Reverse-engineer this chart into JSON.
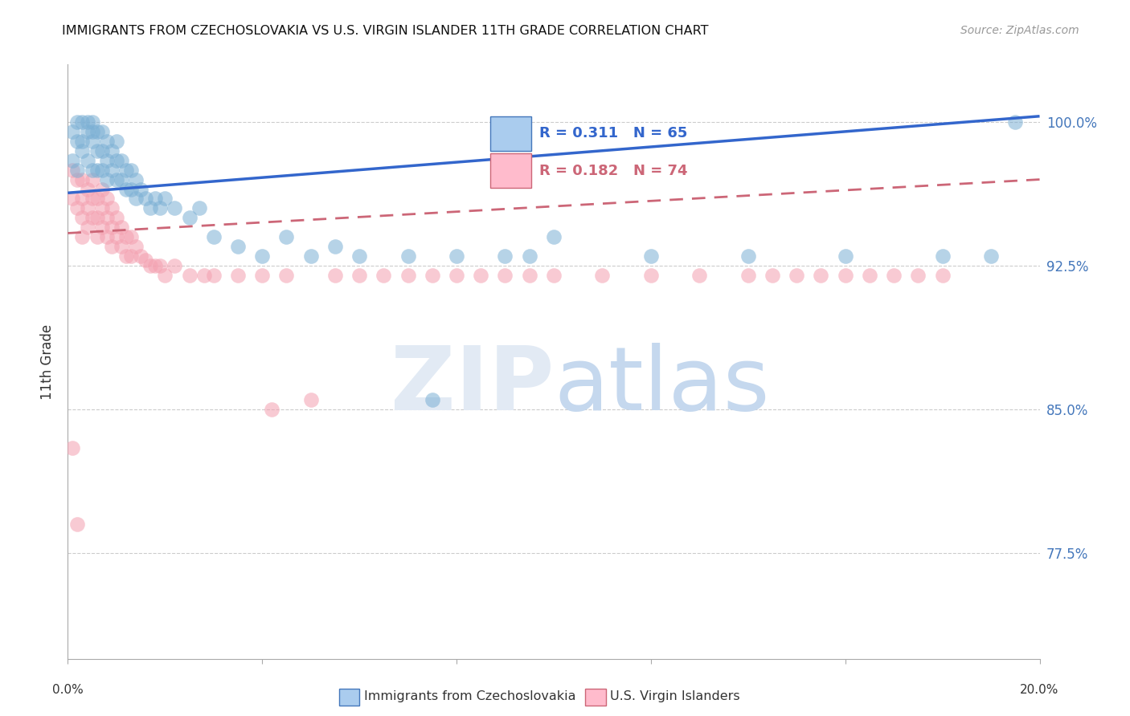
{
  "title": "IMMIGRANTS FROM CZECHOSLOVAKIA VS U.S. VIRGIN ISLANDER 11TH GRADE CORRELATION CHART",
  "source": "Source: ZipAtlas.com",
  "ylabel": "11th Grade",
  "ytick_labels": [
    "77.5%",
    "85.0%",
    "92.5%",
    "100.0%"
  ],
  "ytick_values": [
    0.775,
    0.85,
    0.925,
    1.0
  ],
  "xlim": [
    0.0,
    0.2
  ],
  "ylim": [
    0.72,
    1.03
  ],
  "legend1_label": "Immigrants from Czechoslovakia",
  "legend2_label": "U.S. Virgin Islanders",
  "R_blue": 0.311,
  "N_blue": 65,
  "R_pink": 0.182,
  "N_pink": 74,
  "blue_color": "#7BAFD4",
  "pink_color": "#F4A0B0",
  "line_blue": "#3366CC",
  "line_pink": "#CC6677",
  "blue_line_y0": 0.963,
  "blue_line_y1": 1.003,
  "pink_line_y0": 0.942,
  "pink_line_y1": 0.97,
  "blue_scatter_x": [
    0.001,
    0.001,
    0.002,
    0.002,
    0.002,
    0.003,
    0.003,
    0.003,
    0.004,
    0.004,
    0.004,
    0.005,
    0.005,
    0.005,
    0.005,
    0.006,
    0.006,
    0.006,
    0.007,
    0.007,
    0.007,
    0.008,
    0.008,
    0.008,
    0.009,
    0.009,
    0.01,
    0.01,
    0.01,
    0.011,
    0.011,
    0.012,
    0.012,
    0.013,
    0.013,
    0.014,
    0.014,
    0.015,
    0.016,
    0.017,
    0.018,
    0.019,
    0.02,
    0.022,
    0.025,
    0.027,
    0.03,
    0.035,
    0.04,
    0.045,
    0.05,
    0.055,
    0.06,
    0.07,
    0.075,
    0.08,
    0.09,
    0.095,
    0.1,
    0.12,
    0.14,
    0.16,
    0.18,
    0.19,
    0.195
  ],
  "blue_scatter_y": [
    0.995,
    0.98,
    1.0,
    0.99,
    0.975,
    1.0,
    0.99,
    0.985,
    1.0,
    0.995,
    0.98,
    1.0,
    0.995,
    0.99,
    0.975,
    0.995,
    0.985,
    0.975,
    0.995,
    0.985,
    0.975,
    0.99,
    0.98,
    0.97,
    0.985,
    0.975,
    0.99,
    0.98,
    0.97,
    0.98,
    0.97,
    0.975,
    0.965,
    0.975,
    0.965,
    0.97,
    0.96,
    0.965,
    0.96,
    0.955,
    0.96,
    0.955,
    0.96,
    0.955,
    0.95,
    0.955,
    0.94,
    0.935,
    0.93,
    0.94,
    0.93,
    0.935,
    0.93,
    0.93,
    0.855,
    0.93,
    0.93,
    0.93,
    0.94,
    0.93,
    0.93,
    0.93,
    0.93,
    0.93,
    1.0
  ],
  "pink_scatter_x": [
    0.001,
    0.001,
    0.001,
    0.002,
    0.002,
    0.002,
    0.003,
    0.003,
    0.003,
    0.003,
    0.004,
    0.004,
    0.004,
    0.005,
    0.005,
    0.005,
    0.006,
    0.006,
    0.006,
    0.007,
    0.007,
    0.007,
    0.008,
    0.008,
    0.008,
    0.009,
    0.009,
    0.009,
    0.01,
    0.01,
    0.011,
    0.011,
    0.012,
    0.012,
    0.013,
    0.013,
    0.014,
    0.015,
    0.016,
    0.017,
    0.018,
    0.019,
    0.02,
    0.022,
    0.025,
    0.028,
    0.03,
    0.035,
    0.04,
    0.042,
    0.045,
    0.05,
    0.055,
    0.06,
    0.065,
    0.07,
    0.075,
    0.08,
    0.085,
    0.09,
    0.095,
    0.1,
    0.11,
    0.12,
    0.13,
    0.14,
    0.145,
    0.15,
    0.155,
    0.16,
    0.165,
    0.17,
    0.175,
    0.18
  ],
  "pink_scatter_y": [
    0.975,
    0.96,
    0.83,
    0.97,
    0.955,
    0.79,
    0.97,
    0.96,
    0.95,
    0.94,
    0.965,
    0.955,
    0.945,
    0.97,
    0.96,
    0.95,
    0.96,
    0.95,
    0.94,
    0.965,
    0.955,
    0.945,
    0.96,
    0.95,
    0.94,
    0.955,
    0.945,
    0.935,
    0.95,
    0.94,
    0.945,
    0.935,
    0.94,
    0.93,
    0.94,
    0.93,
    0.935,
    0.93,
    0.928,
    0.925,
    0.925,
    0.925,
    0.92,
    0.925,
    0.92,
    0.92,
    0.92,
    0.92,
    0.92,
    0.85,
    0.92,
    0.855,
    0.92,
    0.92,
    0.92,
    0.92,
    0.92,
    0.92,
    0.92,
    0.92,
    0.92,
    0.92,
    0.92,
    0.92,
    0.92,
    0.92,
    0.92,
    0.92,
    0.92,
    0.92,
    0.92,
    0.92,
    0.92,
    0.92
  ]
}
